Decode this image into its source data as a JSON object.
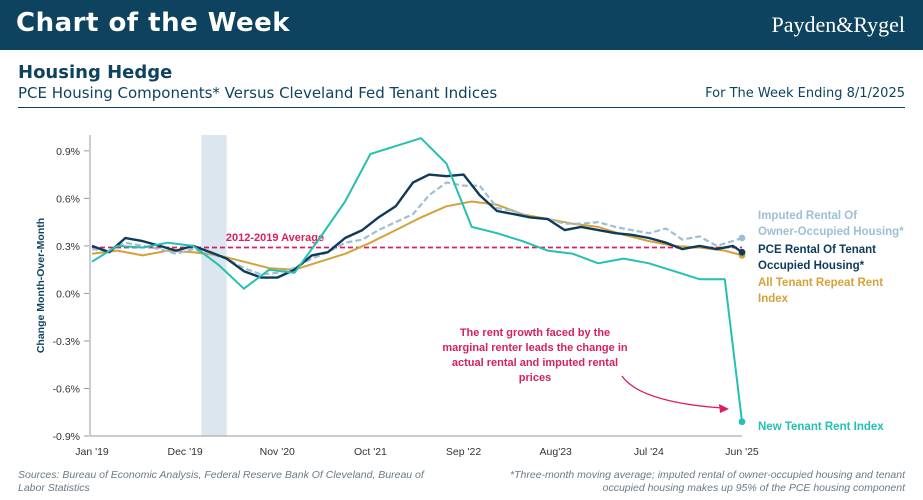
{
  "header": {
    "title": "Chart of the Week",
    "brand": "Payden&Rygel",
    "chart_title": "Housing Hedge",
    "subtitle": "PCE Housing Components* Versus Cleveland Fed Tenant Indices",
    "week": "For The Week Ending 8/1/2025"
  },
  "footer": {
    "sources": "Sources: Bureau of Economic Analysis, Federal Reserve Bank Of Cleveland, Bureau of Labor Statistics",
    "note": "*Three-month moving average; imputed rental of owner-occupied housing and tenant occupied housing makes up 95% of the PCE housing component"
  },
  "colors": {
    "imputed": "#9dbfd6",
    "pce": "#0e3a5b",
    "repeat": "#d5a23a",
    "new_tenant": "#25bfb4",
    "average": "#d6215d",
    "shade": "#dbe6ee"
  },
  "chart_data": {
    "type": "line",
    "ylabel": "Change Month-Over-Month",
    "ylim": [
      -0.9,
      1.0
    ],
    "yticks": [
      0.9,
      0.6,
      0.3,
      0.0,
      -0.3,
      -0.6,
      -0.9
    ],
    "ytick_labels": [
      "0.9%",
      "0.6%",
      "0.3%",
      "0.0%",
      "-0.3%",
      "-0.6%",
      "-0.9%"
    ],
    "xlim": [
      2019.0,
      2025.42
    ],
    "xticks": [
      2019.0,
      2019.92,
      2020.83,
      2021.75,
      2022.67,
      2023.58,
      2024.5,
      2025.42
    ],
    "xtick_labels": [
      "Jan '19",
      "Dec '19",
      "Nov '20",
      "Oct '21",
      "Sep '22",
      "Aug'23",
      "Jul '24",
      "Jun '25"
    ],
    "recession": {
      "start": 2020.08,
      "end": 2020.33
    },
    "average": {
      "label": "2012-2019 Average",
      "value": 0.29
    },
    "annotation": "The rent growth faced by the marginal renter leads the change in actual rental and imputed rental prices",
    "series": [
      {
        "name": "Imputed Rental Of Owner-Occupied Housing*",
        "style": "dashed",
        "x": [
          2019.0,
          2019.17,
          2019.33,
          2019.5,
          2019.67,
          2019.83,
          2020.0,
          2020.17,
          2020.33,
          2020.5,
          2020.67,
          2020.83,
          2021.0,
          2021.17,
          2021.33,
          2021.5,
          2021.67,
          2021.83,
          2022.0,
          2022.17,
          2022.33,
          2022.5,
          2022.67,
          2022.83,
          2023.0,
          2023.17,
          2023.33,
          2023.5,
          2023.67,
          2023.83,
          2024.0,
          2024.17,
          2024.33,
          2024.5,
          2024.67,
          2024.83,
          2025.0,
          2025.17,
          2025.33,
          2025.42
        ],
        "values": [
          0.28,
          0.27,
          0.32,
          0.3,
          0.28,
          0.25,
          0.28,
          0.25,
          0.22,
          0.16,
          0.12,
          0.13,
          0.16,
          0.22,
          0.26,
          0.32,
          0.34,
          0.4,
          0.45,
          0.5,
          0.62,
          0.7,
          0.68,
          0.68,
          0.54,
          0.52,
          0.48,
          0.47,
          0.44,
          0.44,
          0.45,
          0.42,
          0.4,
          0.38,
          0.41,
          0.34,
          0.36,
          0.3,
          0.33,
          0.35
        ]
      },
      {
        "name": "PCE Rental Of Tenant Occupied Housing*",
        "style": "solid",
        "x": [
          2019.0,
          2019.17,
          2019.33,
          2019.5,
          2019.67,
          2019.83,
          2020.0,
          2020.17,
          2020.33,
          2020.5,
          2020.67,
          2020.83,
          2021.0,
          2021.17,
          2021.33,
          2021.5,
          2021.67,
          2021.83,
          2022.0,
          2022.17,
          2022.33,
          2022.5,
          2022.67,
          2022.83,
          2023.0,
          2023.17,
          2023.33,
          2023.5,
          2023.67,
          2023.83,
          2024.0,
          2024.17,
          2024.33,
          2024.5,
          2024.67,
          2024.83,
          2025.0,
          2025.17,
          2025.33,
          2025.42
        ],
        "values": [
          0.3,
          0.26,
          0.35,
          0.33,
          0.3,
          0.27,
          0.3,
          0.26,
          0.22,
          0.14,
          0.1,
          0.1,
          0.15,
          0.24,
          0.26,
          0.35,
          0.4,
          0.48,
          0.55,
          0.7,
          0.75,
          0.74,
          0.75,
          0.62,
          0.52,
          0.5,
          0.48,
          0.47,
          0.4,
          0.42,
          0.4,
          0.38,
          0.37,
          0.35,
          0.32,
          0.28,
          0.3,
          0.28,
          0.3,
          0.26
        ]
      },
      {
        "name": "All Tenant Repeat Rent Index",
        "style": "solid",
        "x": [
          2019.0,
          2019.25,
          2019.5,
          2019.75,
          2020.0,
          2020.25,
          2020.5,
          2020.75,
          2021.0,
          2021.25,
          2021.5,
          2021.75,
          2022.0,
          2022.25,
          2022.5,
          2022.75,
          2023.0,
          2023.25,
          2023.5,
          2023.75,
          2024.0,
          2024.25,
          2024.5,
          2024.75,
          2025.0,
          2025.25,
          2025.42
        ],
        "values": [
          0.25,
          0.27,
          0.24,
          0.27,
          0.26,
          0.24,
          0.2,
          0.16,
          0.15,
          0.2,
          0.25,
          0.32,
          0.4,
          0.48,
          0.55,
          0.58,
          0.56,
          0.5,
          0.47,
          0.44,
          0.42,
          0.37,
          0.33,
          0.3,
          0.29,
          0.27,
          0.24
        ]
      },
      {
        "name": "New Tenant Rent Index",
        "style": "solid",
        "x": [
          2019.0,
          2019.25,
          2019.5,
          2019.75,
          2020.0,
          2020.25,
          2020.5,
          2020.75,
          2021.0,
          2021.25,
          2021.5,
          2021.75,
          2022.0,
          2022.25,
          2022.5,
          2022.75,
          2023.0,
          2023.25,
          2023.5,
          2023.75,
          2024.0,
          2024.25,
          2024.5,
          2024.75,
          2025.0,
          2025.25,
          2025.42
        ],
        "values": [
          0.2,
          0.3,
          0.29,
          0.32,
          0.3,
          0.18,
          0.03,
          0.15,
          0.13,
          0.35,
          0.58,
          0.88,
          0.93,
          0.98,
          0.82,
          0.42,
          0.38,
          0.33,
          0.27,
          0.25,
          0.19,
          0.22,
          0.19,
          0.14,
          0.09,
          0.09,
          -0.81
        ]
      }
    ],
    "legend": [
      "Imputed Rental Of Owner-Occupied Housing*",
      "PCE Rental Of Tenant Occupied Housing*",
      "All Tenant Repeat Rent Index",
      "New Tenant Rent Index"
    ]
  }
}
